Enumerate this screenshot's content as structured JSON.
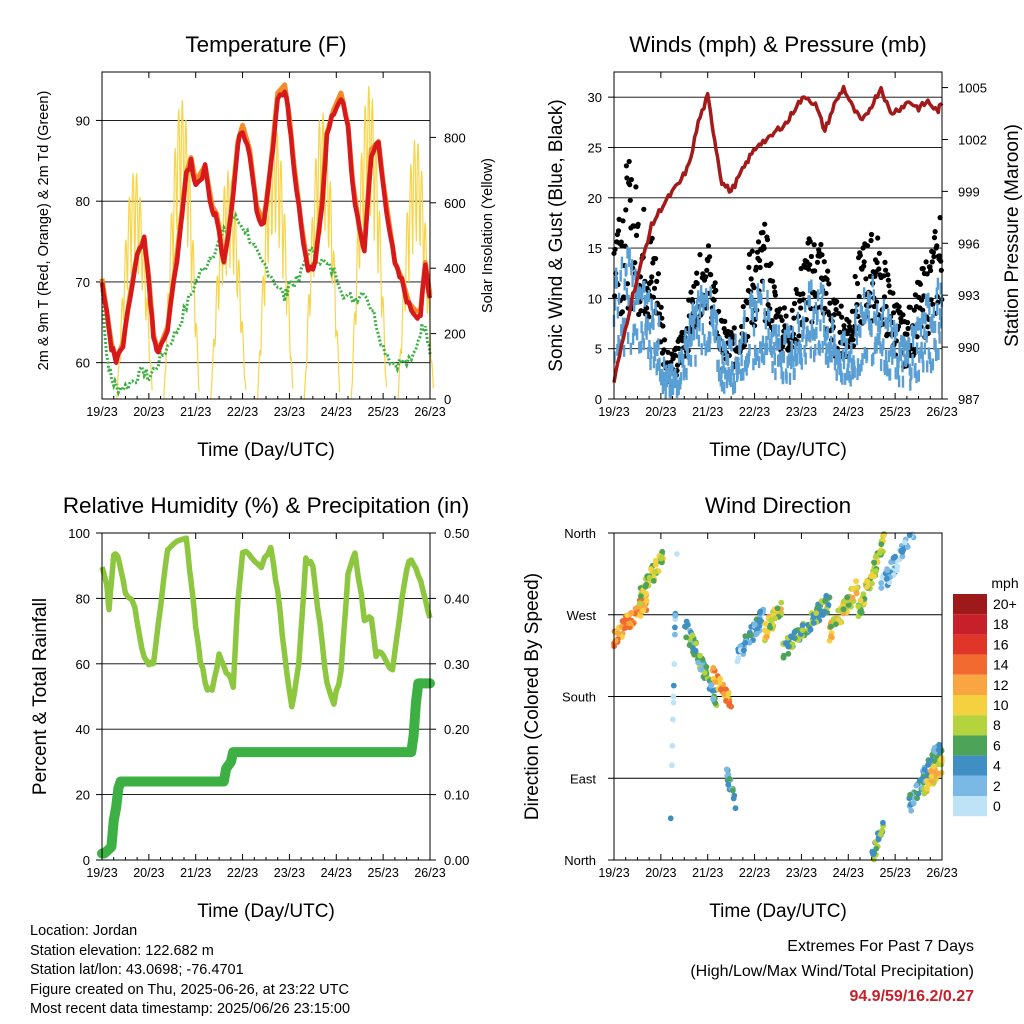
{
  "x_ticks": [
    "19/23",
    "20/23",
    "21/23",
    "22/23",
    "23/23",
    "24/23",
    "25/23",
    "26/23"
  ],
  "info": {
    "location": "Location: Jordan",
    "elevation": "Station elevation: 122.682 m",
    "latlon": "Station lat/lon: 43.0698; -76.4701",
    "created": "Figure created on Thu, 2025-06-26, at 23:22 UTC",
    "recent": "Most recent data timestamp: 2025/06/26 23:15:00"
  },
  "extremes": {
    "title": "Extremes For Past 7 Days",
    "subtitle": "(High/Low/Max Wind/Total Precipitation)",
    "values": "94.9/59/16.2/0.27"
  },
  "colors": {
    "temp_2m": "#d7191c",
    "temp_9m": "#f28c28",
    "dewpoint": "#3cb043",
    "solar": "#f7d54a",
    "gust": "#000000",
    "wind": "#5a9fd4",
    "pressure": "#a31a1a",
    "rh": "#8dc63f",
    "precip": "#3cb043"
  },
  "chart_data": [
    {
      "type": "line",
      "title": "Temperature (F)",
      "xlabel": "Time (Day/UTC)",
      "ylabel": "2m & 9m T (Red, Orange) & 2m Td (Green)",
      "y2label": "Solar Insolation (Yellow)",
      "xlim": [
        0,
        7
      ],
      "ylim": [
        55.5,
        96
      ],
      "y2lim": [
        0,
        1000
      ],
      "yticks": [
        60,
        70,
        80,
        90
      ],
      "y2ticks": [
        0,
        200,
        400,
        600,
        800
      ],
      "grid": true,
      "series": [
        {
          "key": "temp",
          "x": [
            0,
            0.1,
            0.2,
            0.3,
            0.45,
            0.6,
            0.75,
            0.9,
            1.0,
            1.1,
            1.2,
            1.4,
            1.6,
            1.8,
            1.9,
            2.0,
            2.2,
            2.35,
            2.45,
            2.6,
            2.75,
            2.9,
            3.0,
            3.15,
            3.3,
            3.45,
            3.6,
            3.75,
            3.9,
            4.0,
            4.1,
            4.25,
            4.4,
            4.55,
            4.7,
            4.8,
            4.95,
            5.1,
            5.25,
            5.35,
            5.5,
            5.6,
            5.75,
            5.9,
            6.0,
            6.1,
            6.25,
            6.4,
            6.55,
            6.7,
            6.8,
            6.9,
            7.0
          ],
          "values": [
            70,
            66,
            62,
            60,
            62,
            68,
            73,
            75,
            70,
            63,
            61,
            64,
            73,
            83,
            85,
            82,
            84,
            79,
            78,
            72,
            78,
            87,
            89,
            86,
            79,
            77,
            84,
            93,
            94,
            90,
            84,
            77,
            71,
            72,
            80,
            88,
            91,
            93,
            89,
            82,
            76,
            74,
            86,
            87,
            82,
            78,
            72,
            70,
            67,
            66,
            66,
            72,
            68
          ]
        },
        {
          "key": "dewpoint",
          "x": [
            0,
            0.1,
            0.2,
            0.3,
            0.5,
            0.7,
            0.9,
            1.0,
            1.2,
            1.4,
            1.6,
            1.8,
            2.0,
            2.2,
            2.4,
            2.6,
            2.8,
            3.0,
            3.2,
            3.4,
            3.5,
            3.7,
            3.9,
            4.0,
            4.2,
            4.4,
            4.6,
            4.8,
            5.0,
            5.2,
            5.4,
            5.6,
            5.8,
            6.0,
            6.2,
            6.4,
            6.6,
            6.8,
            6.9,
            7.0
          ],
          "values": [
            69,
            61,
            58,
            57,
            57,
            58,
            59,
            58,
            60,
            62,
            64,
            67,
            70,
            72,
            74,
            76,
            78,
            77,
            75,
            72,
            72,
            70,
            68,
            70,
            70,
            74,
            73,
            72,
            71,
            68,
            68,
            69,
            66,
            62,
            60,
            60,
            60,
            64,
            65,
            61
          ]
        },
        {
          "key": "solar",
          "peaks": [
            [
              0.7,
              700
            ],
            [
              1.7,
              920
            ],
            [
              2.7,
              700
            ],
            [
              3.7,
              830
            ],
            [
              4.7,
              880
            ],
            [
              5.7,
              960
            ],
            [
              6.7,
              800
            ]
          ]
        }
      ]
    },
    {
      "type": "line",
      "title": "Winds (mph) & Pressure (mb)",
      "xlabel": "Time (Day/UTC)",
      "ylabel": "Sonic Wind & Gust (Blue, Black)",
      "y2label": "Station Pressure (Maroon)",
      "xlim": [
        0,
        7
      ],
      "ylim": [
        0,
        32.5
      ],
      "y2lim": [
        987,
        1005.9
      ],
      "yticks": [
        0,
        5,
        10,
        15,
        20,
        25,
        30
      ],
      "y2ticks": [
        987,
        990,
        993,
        996,
        999,
        1002,
        1005
      ],
      "grid": true,
      "series": [
        {
          "key": "gust",
          "envelope_x": [
            0,
            0.3,
            0.6,
            0.9,
            1.1,
            1.3,
            1.6,
            1.8,
            2.0,
            2.3,
            2.6,
            2.9,
            3.2,
            3.5,
            3.8,
            4.1,
            4.4,
            4.7,
            5.0,
            5.3,
            5.6,
            5.9,
            6.2,
            6.5,
            6.8,
            7.0
          ],
          "envelope_hi": [
            22,
            24,
            20,
            16,
            6,
            5,
            10,
            14,
            16,
            8,
            7,
            15,
            18,
            10,
            9,
            16,
            17,
            10,
            9,
            16,
            17,
            12,
            8,
            12,
            16,
            20
          ],
          "envelope_lo": [
            8,
            9,
            8,
            6,
            2,
            1,
            5,
            8,
            9,
            3,
            3,
            6,
            8,
            5,
            4,
            7,
            8,
            4,
            4,
            7,
            8,
            5,
            3,
            5,
            7,
            9
          ]
        },
        {
          "key": "wind",
          "envelope_x": [
            0,
            0.3,
            0.6,
            0.9,
            1.1,
            1.3,
            1.6,
            1.8,
            2.0,
            2.3,
            2.6,
            2.9,
            3.2,
            3.5,
            3.8,
            4.1,
            4.4,
            4.7,
            5.0,
            5.3,
            5.6,
            5.9,
            6.2,
            6.5,
            6.8,
            7.0
          ],
          "envelope_hi": [
            13,
            15,
            12,
            10,
            3,
            3,
            8,
            11,
            12,
            6,
            6,
            10,
            12,
            7,
            7,
            11,
            12,
            7,
            6,
            11,
            12,
            8,
            6,
            9,
            11,
            13
          ],
          "envelope_lo": [
            4,
            5,
            4,
            3,
            0,
            0,
            3,
            4,
            5,
            1,
            1,
            3,
            4,
            2,
            2,
            3,
            4,
            2,
            1,
            3,
            4,
            2,
            1,
            2,
            3,
            5
          ]
        },
        {
          "key": "pressure",
          "x": [
            0,
            0.2,
            0.4,
            0.6,
            0.8,
            1.0,
            1.2,
            1.4,
            1.6,
            1.8,
            2.0,
            2.15,
            2.3,
            2.5,
            2.7,
            2.9,
            3.1,
            3.3,
            3.5,
            3.7,
            3.9,
            4.1,
            4.3,
            4.5,
            4.7,
            4.9,
            5.1,
            5.3,
            5.5,
            5.7,
            5.9,
            6.1,
            6.3,
            6.5,
            6.7,
            6.9,
            7.0
          ],
          "values": [
            988,
            990.5,
            993,
            995,
            997,
            998,
            998.8,
            999.5,
            1000.5,
            1003,
            1004.5,
            1002,
            999.5,
            999,
            1000,
            1001,
            1001.8,
            1002,
            1002.6,
            1003,
            1004,
            1004.5,
            1004,
            1002.5,
            1004,
            1005,
            1003.8,
            1003,
            1004,
            1005,
            1003.5,
            1003.8,
            1004.2,
            1003.8,
            1004.2,
            1003.6,
            1004.1
          ]
        }
      ]
    },
    {
      "type": "line",
      "title": "Relative Humidity (%) & Precipitation (in)",
      "xlabel": "Time (Day/UTC)",
      "ylabel": "Percent & Total Rainfall",
      "xlim": [
        0,
        7
      ],
      "ylim": [
        0,
        100
      ],
      "y2lim": [
        0,
        0.5
      ],
      "yticks": [
        0,
        20,
        40,
        60,
        80,
        100
      ],
      "y2ticks": [
        "0.00",
        "0.10",
        "0.20",
        "0.30",
        "0.40",
        "0.50"
      ],
      "grid": true,
      "series": [
        {
          "key": "rh",
          "x": [
            0,
            0.1,
            0.15,
            0.25,
            0.35,
            0.5,
            0.7,
            0.85,
            1.0,
            1.1,
            1.25,
            1.4,
            1.6,
            1.8,
            1.9,
            2.0,
            2.1,
            2.25,
            2.35,
            2.5,
            2.65,
            2.8,
            2.9,
            3.0,
            3.2,
            3.4,
            3.6,
            3.75,
            3.9,
            4.05,
            4.2,
            4.35,
            4.5,
            4.65,
            4.8,
            4.95,
            5.1,
            5.25,
            5.4,
            5.6,
            5.75,
            5.85,
            6.0,
            6.2,
            6.4,
            6.55,
            6.7,
            6.85,
            7.0
          ],
          "values": [
            90,
            85,
            76,
            94,
            93,
            82,
            78,
            64,
            60,
            60,
            78,
            95,
            97,
            98,
            85,
            72,
            61,
            52,
            52,
            63,
            58,
            53,
            80,
            94,
            93,
            90,
            96,
            82,
            62,
            47,
            60,
            92,
            90,
            72,
            54,
            48,
            57,
            88,
            94,
            74,
            74,
            63,
            63,
            58,
            80,
            92,
            90,
            82,
            74
          ]
        },
        {
          "key": "precip",
          "x": [
            0,
            0.05,
            0.2,
            0.25,
            0.3,
            0.35,
            0.4,
            1.5,
            2.6,
            2.65,
            2.75,
            2.8,
            3.0,
            6.4,
            6.6,
            6.65,
            6.7,
            6.75,
            7.0
          ],
          "values": [
            0.01,
            0.01,
            0.02,
            0.06,
            0.08,
            0.11,
            0.12,
            0.12,
            0.12,
            0.14,
            0.15,
            0.165,
            0.165,
            0.165,
            0.165,
            0.19,
            0.24,
            0.27,
            0.27
          ]
        }
      ]
    },
    {
      "type": "scatter",
      "title": "Wind Direction",
      "xlabel": "Time (Day/UTC)",
      "ylabel": "Direction (Colored By Speed)",
      "xlim": [
        0,
        7
      ],
      "ylim": [
        0,
        360
      ],
      "yticks": [
        "North",
        "East",
        "South",
        "West",
        "North"
      ],
      "grid": true,
      "legend": {
        "title": "mph",
        "labels": [
          "20+",
          "18",
          "16",
          "14",
          "12",
          "10",
          "8",
          "6",
          "4",
          "2",
          "0"
        ],
        "colors": [
          "#9e1a1a",
          "#c8202a",
          "#e0362a",
          "#f26a30",
          "#f9a541",
          "#f5d03f",
          "#b5d33d",
          "#4da459",
          "#3f8ec4",
          "#7ab8e6",
          "#bfe3f6"
        ]
      },
      "segments": [
        {
          "x0": 0.0,
          "x1": 0.7,
          "d0": 245,
          "d1": 285,
          "speed": 12
        },
        {
          "x0": 0.5,
          "x1": 1.05,
          "d0": 285,
          "d1": 335,
          "speed": 8
        },
        {
          "x0": 1.2,
          "x1": 1.35,
          "d0": 30,
          "d1": 360,
          "speed": 1
        },
        {
          "x0": 1.5,
          "x1": 2.2,
          "d0": 260,
          "d1": 175,
          "speed": 5
        },
        {
          "x0": 2.1,
          "x1": 2.5,
          "d0": 210,
          "d1": 170,
          "speed": 12
        },
        {
          "x0": 2.4,
          "x1": 2.6,
          "d0": 100,
          "d1": 60,
          "speed": 4
        },
        {
          "x0": 2.6,
          "x1": 3.2,
          "d0": 220,
          "d1": 270,
          "speed": 3
        },
        {
          "x0": 3.2,
          "x1": 3.6,
          "d0": 250,
          "d1": 280,
          "speed": 9
        },
        {
          "x0": 3.6,
          "x1": 4.6,
          "d0": 230,
          "d1": 285,
          "speed": 6
        },
        {
          "x0": 4.6,
          "x1": 5.2,
          "d0": 250,
          "d1": 300,
          "speed": 9
        },
        {
          "x0": 5.2,
          "x1": 5.8,
          "d0": 270,
          "d1": 355,
          "speed": 8
        },
        {
          "x0": 5.7,
          "x1": 6.4,
          "d0": 300,
          "d1": 360,
          "speed": 2
        },
        {
          "x0": 5.5,
          "x1": 5.75,
          "d0": 0,
          "d1": 40,
          "speed": 6
        },
        {
          "x0": 6.3,
          "x1": 7.0,
          "d0": 60,
          "d1": 130,
          "speed": 4
        },
        {
          "x0": 6.6,
          "x1": 7.0,
          "d0": 80,
          "d1": 105,
          "speed": 10
        }
      ]
    }
  ]
}
